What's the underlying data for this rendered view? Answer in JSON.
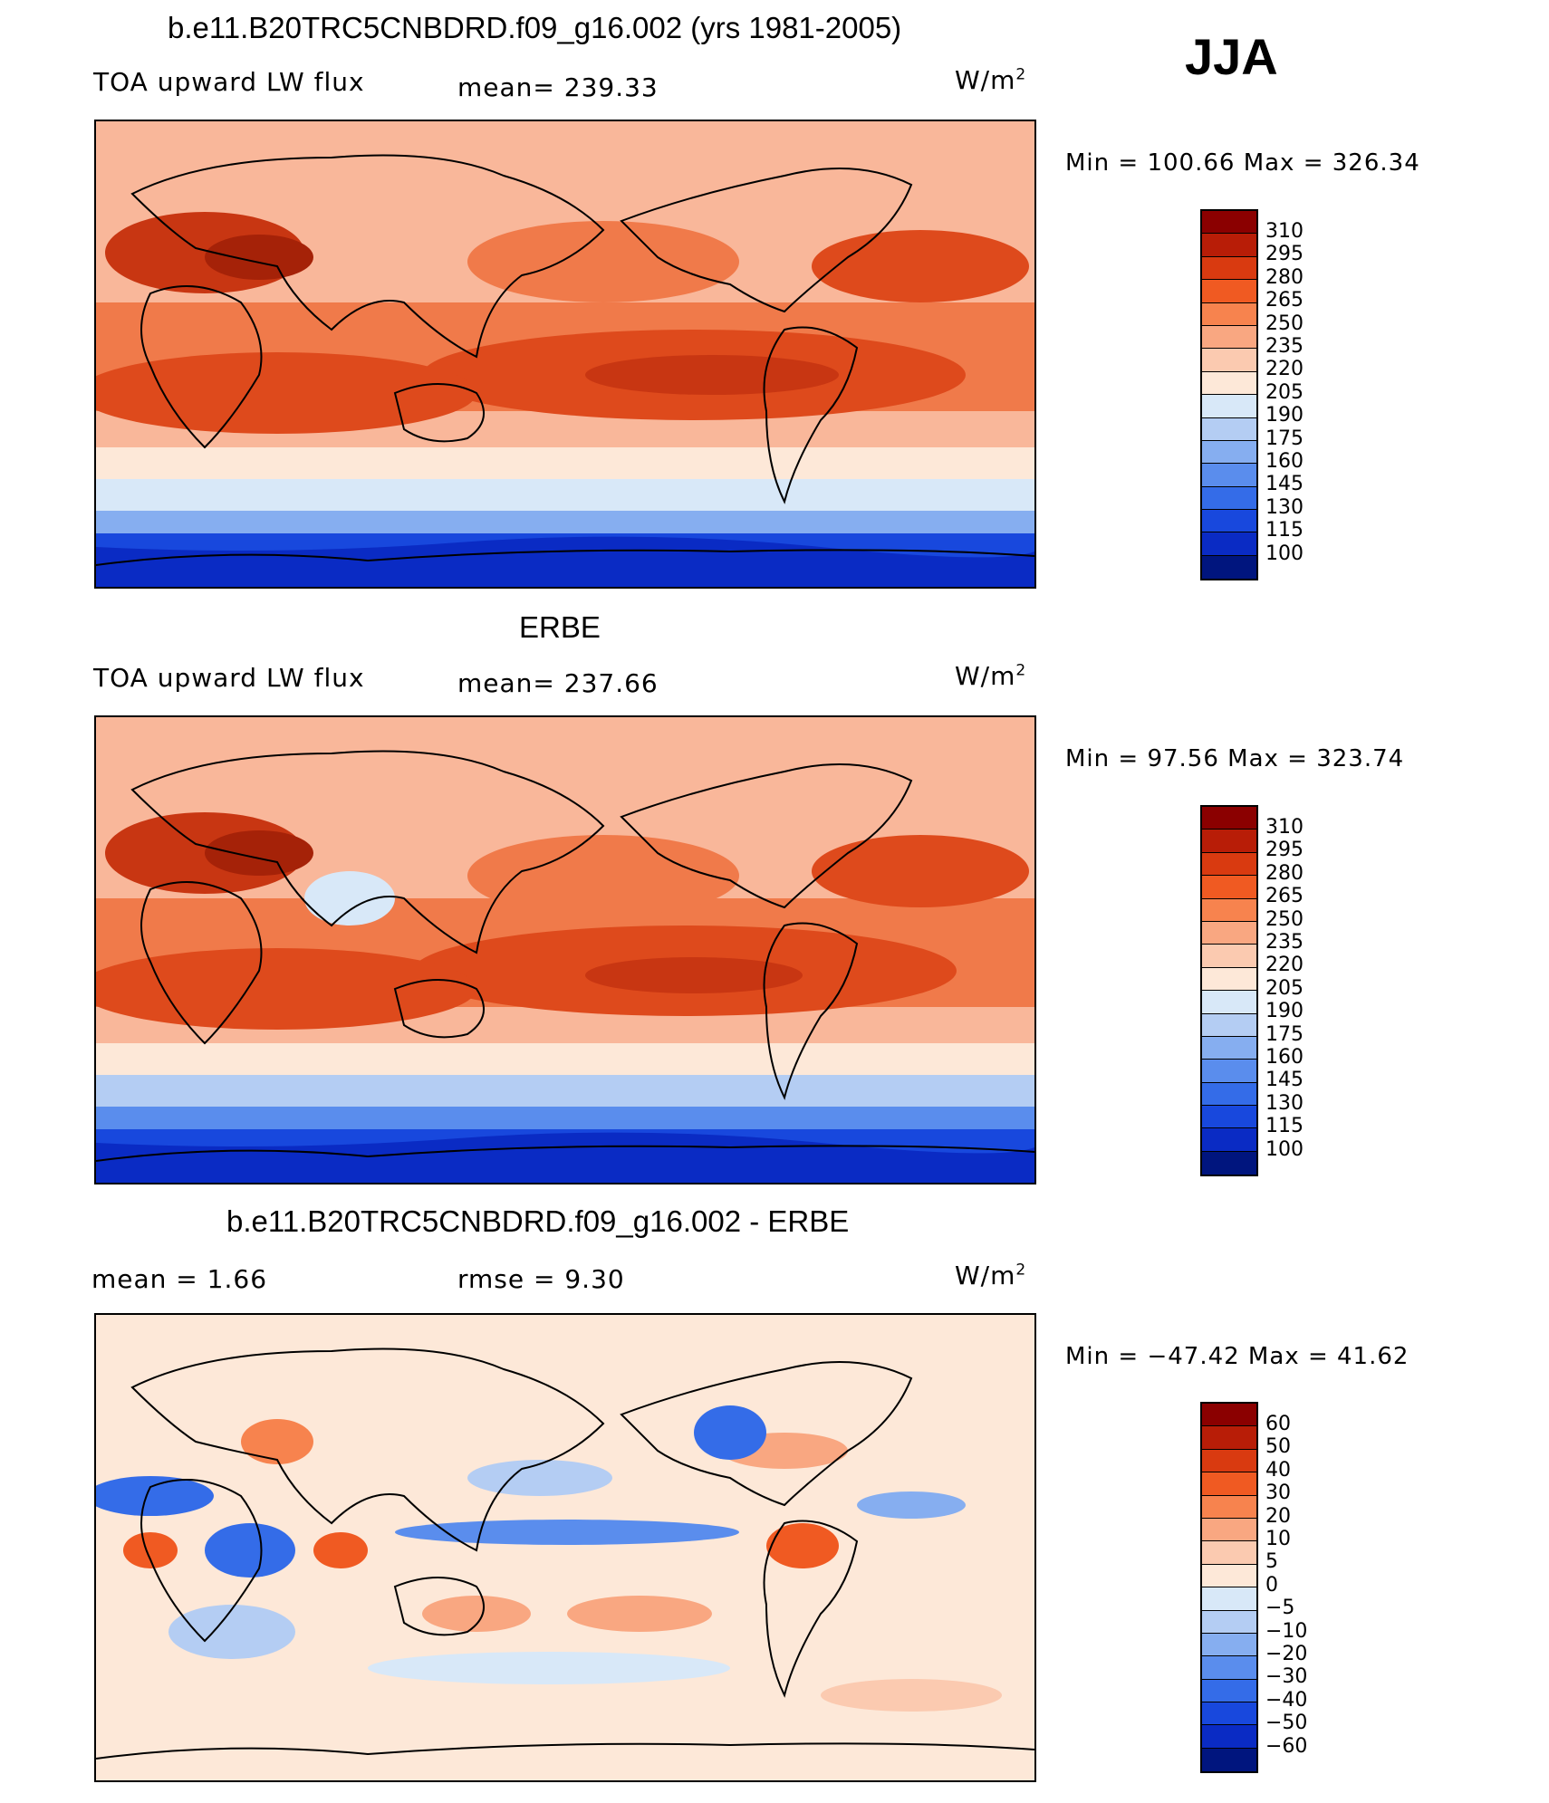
{
  "season": "JJA",
  "panels": [
    {
      "id": "model",
      "title": "b.e11.B20TRC5CNBDRD.f09_g16.002 (yrs 1981-2005)",
      "left_label": "TOA upward LW flux",
      "center_label": "mean=  239.33",
      "units": "W/m",
      "units_sup": "2",
      "minmax": "Min  =  100.66  Max  =  326.34",
      "colorbar_labels": [
        "310",
        "295",
        "280",
        "265",
        "250",
        "235",
        "220",
        "205",
        "190",
        "175",
        "160",
        "145",
        "130",
        "115",
        "100"
      ],
      "colorbar_colors": [
        "#8b0000",
        "#b81d07",
        "#d93a10",
        "#f05a22",
        "#f7834e",
        "#f9a781",
        "#fbcab0",
        "#fde8d8",
        "#d8e8f8",
        "#b4cdf3",
        "#86aef0",
        "#5a8ded",
        "#346ce8",
        "#1848dd",
        "#0a2bc4",
        "#00157e"
      ]
    },
    {
      "id": "obs",
      "title": "ERBE",
      "left_label": "TOA upward LW flux",
      "center_label": "mean=  237.66",
      "units": "W/m",
      "units_sup": "2",
      "minmax": "Min  =   97.56  Max  =  323.74",
      "colorbar_labels": [
        "310",
        "295",
        "280",
        "265",
        "250",
        "235",
        "220",
        "205",
        "190",
        "175",
        "160",
        "145",
        "130",
        "115",
        "100"
      ],
      "colorbar_colors": [
        "#8b0000",
        "#b81d07",
        "#d93a10",
        "#f05a22",
        "#f7834e",
        "#f9a781",
        "#fbcab0",
        "#fde8d8",
        "#d8e8f8",
        "#b4cdf3",
        "#86aef0",
        "#5a8ded",
        "#346ce8",
        "#1848dd",
        "#0a2bc4",
        "#00157e"
      ]
    },
    {
      "id": "diff",
      "title": "b.e11.B20TRC5CNBDRD.f09_g16.002 - ERBE",
      "left_label": "mean  =     1.66",
      "center_label": "rmse  =     9.30",
      "units": "W/m",
      "units_sup": "2",
      "minmax": "Min  = −47.42  Max  =    41.62",
      "colorbar_labels": [
        "60",
        "50",
        "40",
        "30",
        "20",
        "10",
        "5",
        "0",
        "−5",
        "−10",
        "−20",
        "−30",
        "−40",
        "−50",
        "−60"
      ],
      "colorbar_colors": [
        "#8b0000",
        "#b81d07",
        "#d93a10",
        "#f05a22",
        "#f7834e",
        "#f9a781",
        "#fbcab0",
        "#fde8d8",
        "#d8e8f8",
        "#b4cdf3",
        "#86aef0",
        "#5a8ded",
        "#346ce8",
        "#1848dd",
        "#0a2bc4",
        "#00157e"
      ]
    }
  ]
}
